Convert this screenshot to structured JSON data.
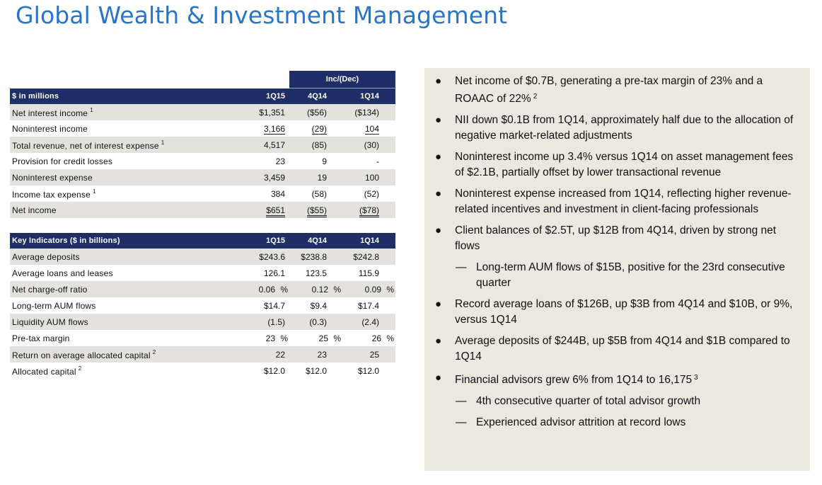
{
  "title": "Global Wealth & Investment Management",
  "financials": {
    "inc_header": "Inc/(Dec)",
    "header": {
      "label": "$ in millions",
      "c1": "1Q15",
      "c2": "4Q14",
      "c3": "1Q14"
    },
    "rows": [
      {
        "label": "Net interest income",
        "sup": "1",
        "c1": "$1,351",
        "c2": "($56)",
        "c3": "($134)"
      },
      {
        "label": "Noninterest income",
        "sup": "",
        "c1": "3,166",
        "c2": "(29)",
        "c3": "104"
      },
      {
        "label": "Total revenue, net of interest expense",
        "sup": "1",
        "c1": "4,517",
        "c2": "(85)",
        "c3": "(30)"
      },
      {
        "label": "Provision for credit losses",
        "sup": "",
        "c1": "23",
        "c2": "9",
        "c3": "-"
      },
      {
        "label": "Noninterest expense",
        "sup": "",
        "c1": "3,459",
        "c2": "19",
        "c3": "100"
      },
      {
        "label": "Income tax expense",
        "sup": "1",
        "c1": "384",
        "c2": "(58)",
        "c3": "(52)"
      },
      {
        "label": "Net income",
        "sup": "",
        "c1": "$651",
        "c2": "($55)",
        "c3": "($78)"
      }
    ]
  },
  "indicators": {
    "header": {
      "label": "Key Indicators ($ in billions)",
      "c1": "1Q15",
      "c2": "4Q14",
      "c3": "1Q14"
    },
    "rows": [
      {
        "label": "Average deposits",
        "sup": "",
        "c1": "$243.6",
        "c2": "$238.8",
        "c3": "$242.8",
        "pct": ""
      },
      {
        "label": "Average loans and leases",
        "sup": "",
        "c1": "126.1",
        "c2": "123.5",
        "c3": "115.9",
        "pct": ""
      },
      {
        "label": "Net charge-off ratio",
        "sup": "",
        "c1": "0.06",
        "c2": "0.12",
        "c3": "0.09",
        "pct": "%"
      },
      {
        "label": "Long-term AUM flows",
        "sup": "",
        "c1": "$14.7",
        "c2": "$9.4",
        "c3": "$17.4",
        "pct": ""
      },
      {
        "label": "Liquidity AUM flows",
        "sup": "",
        "c1": "(1.5)",
        "c2": "(0.3)",
        "c3": "(2.4)",
        "pct": ""
      },
      {
        "label": "Pre-tax margin",
        "sup": "",
        "c1": "23",
        "c2": "25",
        "c3": "26",
        "pct": "%"
      },
      {
        "label": "Return on average allocated capital",
        "sup": "2",
        "c1": "22",
        "c2": "23",
        "c3": "25",
        "pct": ""
      },
      {
        "label": "Allocated capital",
        "sup": "2",
        "c1": "$12.0",
        "c2": "$12.0",
        "c3": "$12.0",
        "pct": ""
      }
    ]
  },
  "bullets": [
    {
      "level": 1,
      "text": "Net income of $0.7B, generating a pre-tax margin of 23% and a ROAAC of 22%",
      "sup": "2"
    },
    {
      "level": 1,
      "text": "NII down $0.1B from 1Q14, approximately half due to the allocation of negative market-related adjustments",
      "sup": ""
    },
    {
      "level": 1,
      "text": "Noninterest income up 3.4% versus 1Q14 on asset management fees of $2.1B, partially offset by lower transactional revenue",
      "sup": ""
    },
    {
      "level": 1,
      "text": "Noninterest expense increased from 1Q14, reflecting higher revenue-related incentives and investment in client-facing professionals",
      "sup": ""
    },
    {
      "level": 1,
      "text": "Client balances of $2.5T, up $12B from 4Q14, driven by strong net flows",
      "sup": ""
    },
    {
      "level": 2,
      "text": "Long-term AUM flows of $15B, positive for the 23rd consecutive quarter",
      "sup": ""
    },
    {
      "level": 1,
      "text": "Record average loans of $126B, up $3B from 4Q14 and $10B, or 9%, versus 1Q14",
      "sup": ""
    },
    {
      "level": 1,
      "text": "Average deposits of $244B, up $5B from 4Q14 and $1B compared to 1Q14",
      "sup": ""
    },
    {
      "level": 1,
      "text": "Financial advisors grew 6% from 1Q14 to 16,175",
      "sup": "3"
    },
    {
      "level": 2,
      "text": "4th consecutive quarter of total advisor growth",
      "sup": ""
    },
    {
      "level": 2,
      "text": "Experienced advisor attrition at record lows",
      "sup": ""
    }
  ]
}
